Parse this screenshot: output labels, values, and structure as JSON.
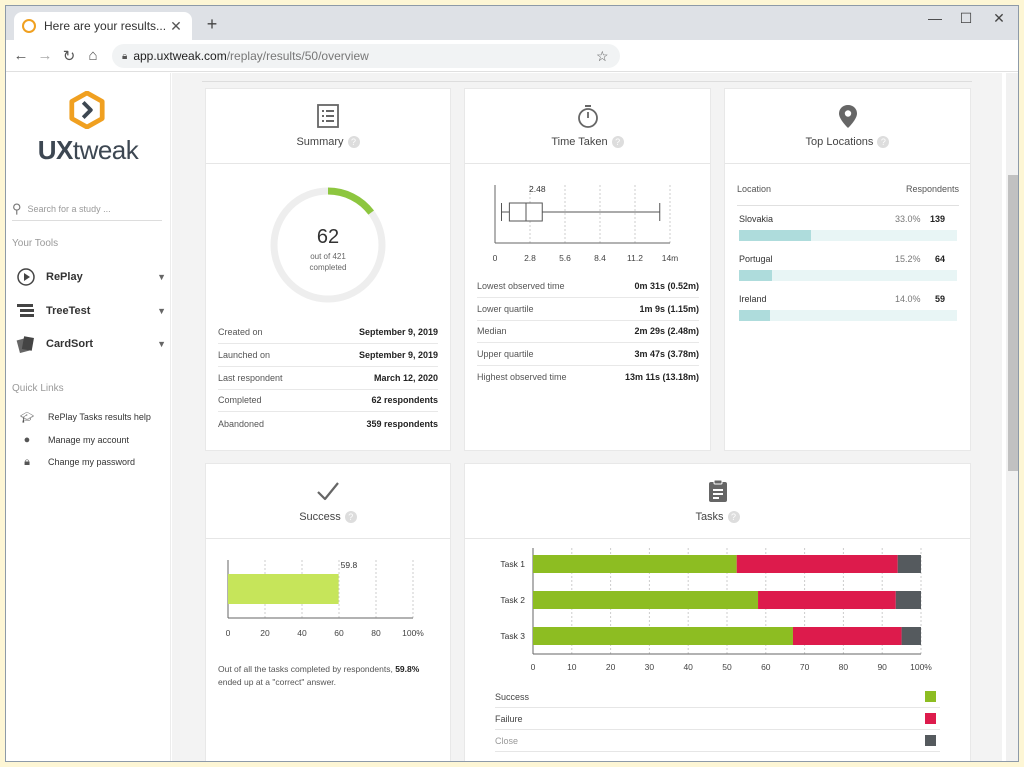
{
  "browser": {
    "tab_title": "Here are your results...",
    "url_domain": "app.uxtweak.com",
    "url_path": "/replay/results/50/overview"
  },
  "sidebar": {
    "logo_text_ux": "UX",
    "logo_text_tweak": "tweak",
    "search_placeholder": "Search for a study ...",
    "your_tools_heading": "Your Tools",
    "tools": [
      {
        "label": "RePlay",
        "icon": "replay-icon"
      },
      {
        "label": "TreeTest",
        "icon": "treetest-icon"
      },
      {
        "label": "CardSort",
        "icon": "cardsort-icon"
      }
    ],
    "quick_links_heading": "Quick Links",
    "quick_links": [
      {
        "label": "RePlay Tasks results help",
        "icon": "graduation-cap-icon"
      },
      {
        "label": "Manage my account",
        "icon": "account-icon"
      },
      {
        "label": "Change my password",
        "icon": "lock-icon"
      }
    ]
  },
  "summary": {
    "title": "Summary",
    "completed_value": "62",
    "completed_of": "out of 421",
    "completed_label": "completed",
    "completed_fraction": 0.1473,
    "rows": [
      {
        "label": "Created on",
        "value": "September 9, 2019"
      },
      {
        "label": "Launched on",
        "value": "September 9, 2019"
      },
      {
        "label": "Last respondent",
        "value": "March 12, 2020"
      },
      {
        "label": "Completed",
        "value": "62 respondents"
      },
      {
        "label": "Abandoned",
        "value": "359 respondents"
      }
    ]
  },
  "time_taken": {
    "title": "Time Taken",
    "rows": [
      {
        "label": "Lowest observed time",
        "value": "0m 31s (0.52m)"
      },
      {
        "label": "Lower quartile",
        "value": "1m 9s (1.15m)"
      },
      {
        "label": "Median",
        "value": "2m 29s (2.48m)"
      },
      {
        "label": "Upper quartile",
        "value": "3m 47s (3.78m)"
      },
      {
        "label": "Highest observed time",
        "value": "13m 11s (13.18m)"
      }
    ]
  },
  "top_locations": {
    "title": "Top Locations",
    "col_location": "Location",
    "col_respondents": "Respondents",
    "rows": [
      {
        "name": "Slovakia",
        "pct_label": "33.0%",
        "pct": 33.0,
        "count": "139"
      },
      {
        "name": "Portugal",
        "pct_label": "15.2%",
        "pct": 15.2,
        "count": "64"
      },
      {
        "name": "Ireland",
        "pct_label": "14.0%",
        "pct": 14.0,
        "count": "59"
      }
    ]
  },
  "success": {
    "title": "Success",
    "note_prefix": "Out of all the tasks completed by respondents,",
    "note_value": "59.8%",
    "note_suffix": "ended up at a \"correct\" answer."
  },
  "tasks": {
    "title": "Tasks",
    "legend": [
      {
        "label": "Success",
        "color": "#8dbd22"
      },
      {
        "label": "Failure",
        "color": "#dd1b4c"
      },
      {
        "label": "Close",
        "color": "#555a5e"
      }
    ]
  },
  "chart_data": [
    {
      "type": "boxplot",
      "title": "Time Taken",
      "xlim": [
        0,
        14
      ],
      "xticks": [
        "0",
        "2.8",
        "5.6",
        "8.4",
        "11.2",
        "14m"
      ],
      "min": 0.52,
      "q1": 1.15,
      "median": 2.48,
      "q3": 3.78,
      "max": 13.18,
      "median_label": "2.48"
    },
    {
      "type": "bar",
      "orientation": "horizontal",
      "title": "Success",
      "values": [
        59.8
      ],
      "value_label": "59.8",
      "xlim": [
        0,
        100
      ],
      "xticks": [
        "0",
        "20",
        "40",
        "60",
        "80",
        "100%"
      ],
      "color": "#c6e55a"
    },
    {
      "type": "bar",
      "orientation": "horizontal",
      "stacked": true,
      "title": "Tasks",
      "categories": [
        "Task 1",
        "Task 2",
        "Task 3"
      ],
      "series": [
        {
          "name": "Success",
          "values": [
            52.5,
            58,
            67
          ],
          "color": "#8dbd22"
        },
        {
          "name": "Failure",
          "values": [
            41.5,
            35.5,
            28
          ],
          "color": "#dd1b4c"
        },
        {
          "name": "Close",
          "values": [
            6,
            6.5,
            5
          ],
          "color": "#555a5e"
        }
      ],
      "xlim": [
        0,
        100
      ],
      "xticks": [
        "0",
        "10",
        "20",
        "30",
        "40",
        "50",
        "60",
        "70",
        "80",
        "90",
        "100%"
      ]
    }
  ]
}
